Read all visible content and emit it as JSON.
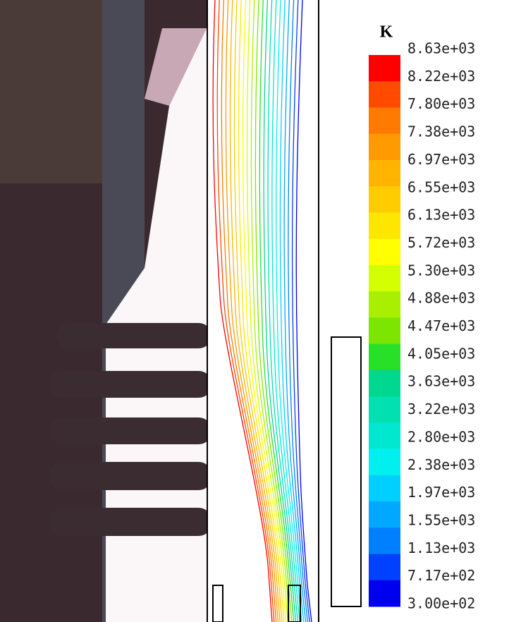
{
  "colorbar": {
    "unit": "K",
    "labels": [
      "8.63e+03",
      "8.22e+03",
      "7.80e+03",
      "7.38e+03",
      "6.97e+03",
      "6.55e+03",
      "6.13e+03",
      "5.72e+03",
      "5.30e+03",
      "4.88e+03",
      "4.47e+03",
      "4.05e+03",
      "3.63e+03",
      "3.22e+03",
      "2.80e+03",
      "2.38e+03",
      "1.97e+03",
      "1.55e+03",
      "1.13e+03",
      "7.17e+02",
      "3.00e+02"
    ],
    "colors": [
      "#ff0000",
      "#ff4a00",
      "#ff7a00",
      "#ff9a00",
      "#ffb400",
      "#ffcc00",
      "#ffe600",
      "#ffff00",
      "#d4ff00",
      "#a8f000",
      "#7ce600",
      "#28e028",
      "#00d890",
      "#00e0b0",
      "#00e8d0",
      "#00f0f0",
      "#00d0ff",
      "#00a8ff",
      "#0080ff",
      "#0040ff",
      "#0000f0"
    ]
  }
}
